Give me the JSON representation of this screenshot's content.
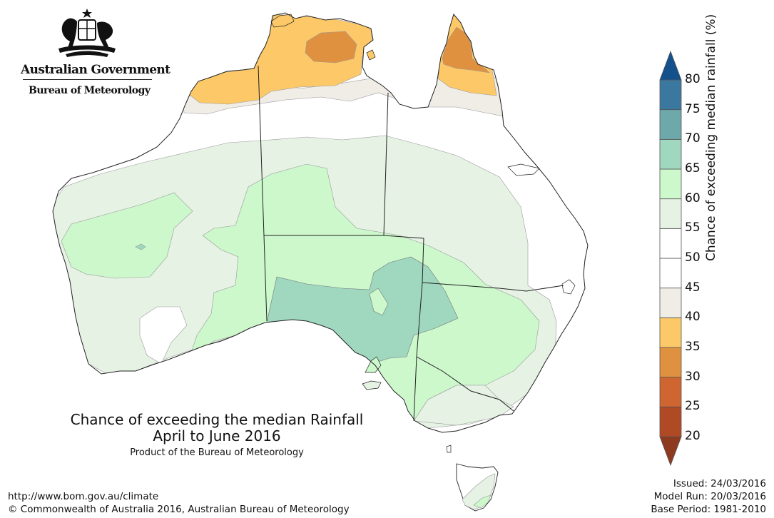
{
  "logo": {
    "government": "Australian Government",
    "bureau": "Bureau of Meteorology"
  },
  "title": {
    "line1": "Chance of exceeding the median Rainfall",
    "line2": "April to June 2016",
    "product": "Product of the Bureau of Meteorology"
  },
  "footer": {
    "url": "http://www.bom.gov.au/climate",
    "copyright": "© Commonwealth of Australia 2016, Australian Bureau of Meteorology"
  },
  "meta": {
    "issued": "Issued: 24/03/2016",
    "model_run": "Model Run: 20/03/2016",
    "base_period": "Base Period: 1981-2010"
  },
  "legend": {
    "label": "Chance of exceeding median rainfall (%)",
    "ticks": [
      "20",
      "25",
      "30",
      "35",
      "40",
      "45",
      "50",
      "55",
      "60",
      "65",
      "70",
      "75",
      "80"
    ],
    "bins": [
      {
        "range": "<20",
        "color": "#8e3a1e"
      },
      {
        "range": "20-25",
        "color": "#b04a24"
      },
      {
        "range": "25-30",
        "color": "#cf6530"
      },
      {
        "range": "30-35",
        "color": "#e0913f"
      },
      {
        "range": "35-40",
        "color": "#fdc968"
      },
      {
        "range": "40-45",
        "color": "#f0ece6"
      },
      {
        "range": "45-50",
        "color": "#ffffff"
      },
      {
        "range": "50-55",
        "color": "#ffffff"
      },
      {
        "range": "55-60",
        "color": "#e6f3e4"
      },
      {
        "range": "60-65",
        "color": "#ccf8cc"
      },
      {
        "range": "65-70",
        "color": "#9fd7bf"
      },
      {
        "range": "70-75",
        "color": "#6da8ab"
      },
      {
        "range": "75-80",
        "color": "#3b78a0"
      },
      {
        "range": ">80",
        "color": "#14508c"
      }
    ]
  },
  "map_colors": {
    "ocean": "#ffffff",
    "land_base": "#ffffff",
    "p40_45": "#f0ece6",
    "p35_40": "#fdc968",
    "p30_35": "#e0913f",
    "p55_60": "#e6f3e4",
    "p60_65": "#ccf8cc",
    "p65_70": "#9fd7bf",
    "border": "#222222"
  }
}
